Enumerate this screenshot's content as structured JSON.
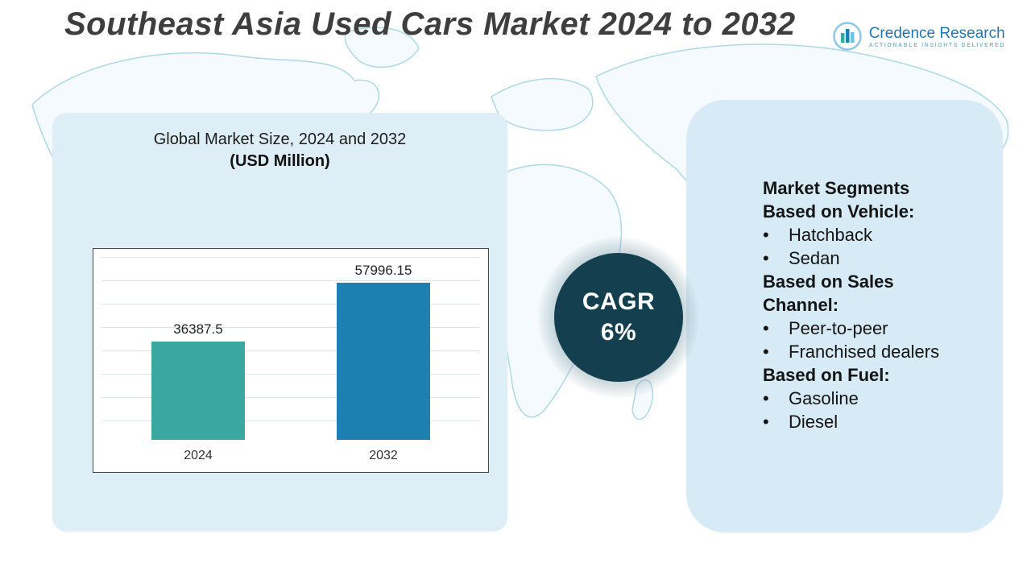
{
  "header": {
    "title": "Southeast Asia Used Cars Market 2024 to 2032"
  },
  "logo": {
    "name": "Credence Research",
    "tagline": "Actionable Insights Delivered"
  },
  "chart_panel": {
    "title": "Global Market Size, 2024 and 2032",
    "subtitle": "(USD Million)"
  },
  "chart_data": {
    "type": "bar",
    "title": "Global Market Size, 2024 and 2032 (USD Million)",
    "categories": [
      "2024",
      "2032"
    ],
    "values": [
      36387.5,
      57996.15
    ],
    "value_labels": [
      "36387.5",
      "57996.15"
    ],
    "bar_colors": [
      "#3aa8a1",
      "#1e80b1"
    ],
    "ylim": [
      0,
      70000
    ],
    "grid": true,
    "legend": false
  },
  "cagr_badge": {
    "label": "CAGR",
    "value": "6%"
  },
  "segments_panel": {
    "heading": "Market Segments",
    "bullet": "•",
    "groups": [
      {
        "title": "Based on Vehicle:",
        "items": [
          "Hatchback",
          "Sedan"
        ]
      },
      {
        "title": "Based on Sales Channel:",
        "items": [
          "Peer-to-peer",
          "Franchised dealers"
        ]
      },
      {
        "title": "Based on Fuel:",
        "items": [
          "Gasoline",
          "Diesel"
        ]
      }
    ]
  },
  "colors": {
    "accent_teal": "#3aa8a1",
    "accent_blue": "#1e80b1",
    "badge_dark": "#143f4e",
    "panel_blue": "#d6ebf6",
    "map_line": "#aed8e6"
  }
}
